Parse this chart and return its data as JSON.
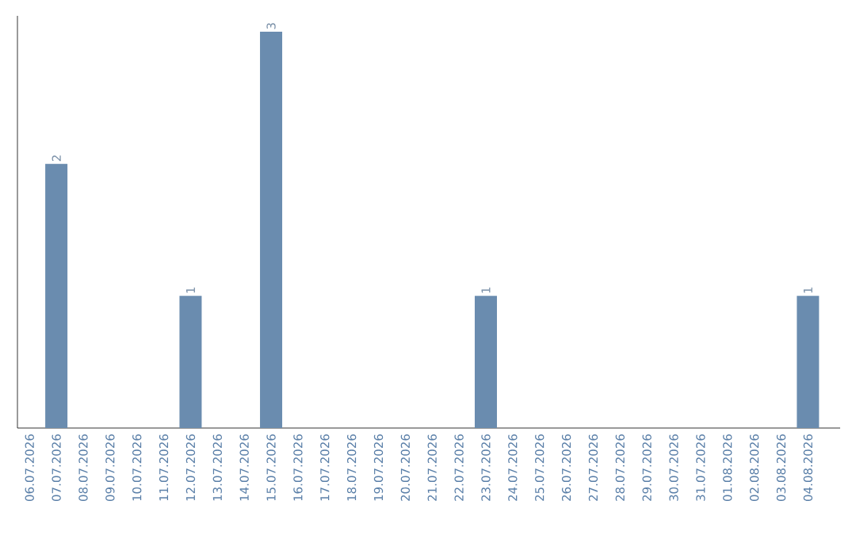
{
  "chart_data": {
    "type": "bar",
    "categories": [
      "06.07.2026",
      "07.07.2026",
      "08.07.2026",
      "09.07.2026",
      "10.07.2026",
      "11.07.2026",
      "12.07.2026",
      "13.07.2026",
      "14.07.2026",
      "15.07.2026",
      "16.07.2026",
      "17.07.2026",
      "18.07.2026",
      "19.07.2026",
      "20.07.2026",
      "21.07.2026",
      "22.07.2026",
      "23.07.2026",
      "24.07.2026",
      "25.07.2026",
      "26.07.2026",
      "27.07.2026",
      "28.07.2026",
      "29.07.2026",
      "30.07.2026",
      "31.07.2026",
      "01.08.2026",
      "02.08.2026",
      "03.08.2026",
      "04.08.2026"
    ],
    "values": [
      0,
      2,
      0,
      0,
      0,
      0,
      1,
      0,
      0,
      3,
      0,
      0,
      0,
      0,
      0,
      0,
      0,
      1,
      0,
      0,
      0,
      0,
      0,
      0,
      0,
      0,
      0,
      0,
      0,
      1
    ],
    "value_labels": [
      null,
      "2",
      null,
      null,
      null,
      null,
      "1",
      null,
      null,
      "3",
      null,
      null,
      null,
      null,
      null,
      null,
      null,
      "1",
      null,
      null,
      null,
      null,
      null,
      null,
      null,
      null,
      null,
      null,
      null,
      "1"
    ],
    "color": "#6a8caf"
  }
}
